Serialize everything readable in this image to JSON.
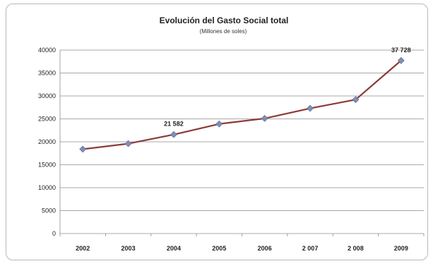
{
  "chart_data": {
    "type": "line",
    "title": "Evolución del Gasto Social total",
    "subtitle": "(Millones de soles)",
    "categories": [
      "2002",
      "2003",
      "2004",
      "2005",
      "2006",
      "2 007",
      "2 008",
      "2009"
    ],
    "series": [
      {
        "values": [
          18400,
          19600,
          21582,
          23900,
          25100,
          27300,
          29200,
          37728
        ]
      }
    ],
    "data_labels": [
      {
        "index": 2,
        "text": "21 582"
      },
      {
        "index": 7,
        "text": "37 728"
      }
    ],
    "y_ticks": [
      "0",
      "5000",
      "10000",
      "15000",
      "20000",
      "25000",
      "30000",
      "35000",
      "40000"
    ],
    "ylim": [
      0,
      40000
    ],
    "grid": true,
    "line_color": "#8b3a3a",
    "marker_color": "#7f8fb5"
  }
}
